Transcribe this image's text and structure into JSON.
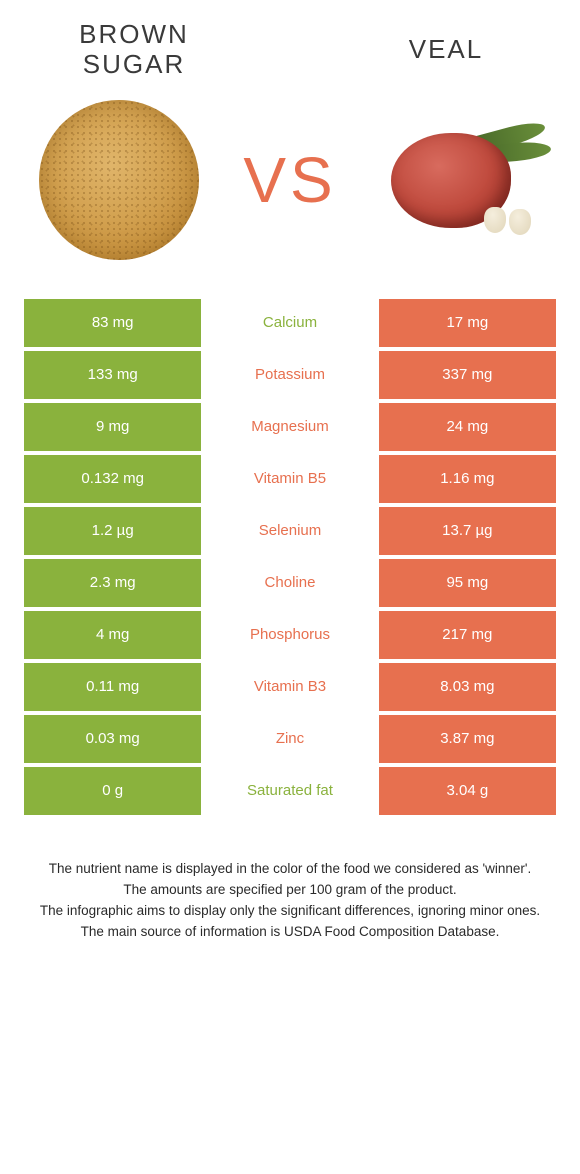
{
  "left_food": "BROWN SUGAR",
  "right_food": "VEAL",
  "vs_label": "VS",
  "colors": {
    "left": "#8ab23d",
    "right": "#e7704f",
    "center_bg": "#ffffff",
    "body_bg": "#ffffff",
    "title_text": "#3a3a3a",
    "notes_text": "#2a2a2a"
  },
  "rows": [
    {
      "left": "83 mg",
      "name": "Calcium",
      "right": "17 mg",
      "winner": "left"
    },
    {
      "left": "133 mg",
      "name": "Potassium",
      "right": "337 mg",
      "winner": "right"
    },
    {
      "left": "9 mg",
      "name": "Magnesium",
      "right": "24 mg",
      "winner": "right"
    },
    {
      "left": "0.132 mg",
      "name": "Vitamin B5",
      "right": "1.16 mg",
      "winner": "right"
    },
    {
      "left": "1.2 µg",
      "name": "Selenium",
      "right": "13.7 µg",
      "winner": "right"
    },
    {
      "left": "2.3 mg",
      "name": "Choline",
      "right": "95 mg",
      "winner": "right"
    },
    {
      "left": "4 mg",
      "name": "Phosphorus",
      "right": "217 mg",
      "winner": "right"
    },
    {
      "left": "0.11 mg",
      "name": "Vitamin B3",
      "right": "8.03 mg",
      "winner": "right"
    },
    {
      "left": "0.03 mg",
      "name": "Zinc",
      "right": "3.87 mg",
      "winner": "right"
    },
    {
      "left": "0 g",
      "name": "Saturated fat",
      "right": "3.04 g",
      "winner": "left"
    }
  ],
  "notes": [
    "The nutrient name is displayed in the color of the food we considered as 'winner'.",
    "The amounts are specified per 100 gram of the product.",
    "The infographic aims to display only the significant differences, ignoring minor ones.",
    "The main source of information is USDA Food Composition Database."
  ]
}
